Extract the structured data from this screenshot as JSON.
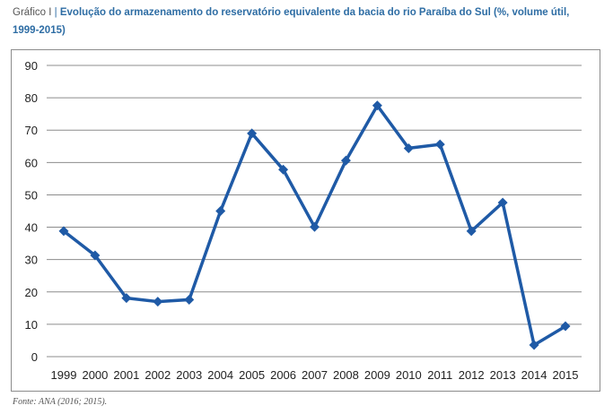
{
  "caption": {
    "lead": "Gráfico I",
    "title": "Evolução do armazenamento do reservatório equivalente da bacia do rio Paraíba do Sul (%, volume útil, 1999-2015)"
  },
  "source": "Fonte: ANA (2016; 2015).",
  "colors": {
    "line": "#1f5aa6",
    "title": "#2e6da4",
    "grid": "#8c8c8c"
  },
  "chart_data": {
    "type": "line",
    "title": "",
    "xlabel": "",
    "ylabel": "",
    "categories": [
      "1999",
      "2000",
      "2001",
      "2002",
      "2003",
      "2004",
      "2005",
      "2006",
      "2007",
      "2008",
      "2009",
      "2010",
      "2011",
      "2012",
      "2013",
      "2014",
      "2015"
    ],
    "series": [
      {
        "name": "",
        "values": [
          38.8,
          31.3,
          18.1,
          17.0,
          17.6,
          45.0,
          69.0,
          57.8,
          40.1,
          60.6,
          77.6,
          64.4,
          65.6,
          38.8,
          47.6,
          3.6,
          9.4
        ]
      }
    ],
    "ylim": [
      0,
      90
    ],
    "yticks": [
      0,
      10,
      20,
      30,
      40,
      50,
      60,
      70,
      80,
      90
    ],
    "grid": true,
    "legend": "none",
    "marker": "diamond"
  }
}
